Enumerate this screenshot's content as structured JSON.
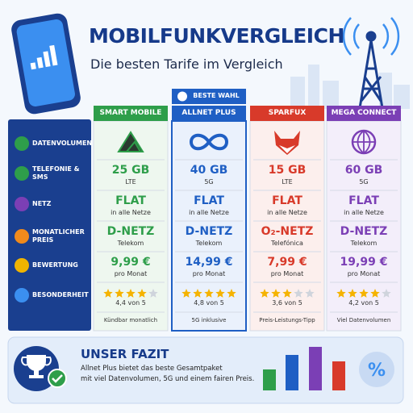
{
  "header": {
    "title": "MOBILFUNKVERGLEICH",
    "subtitle": "Die besten Tarife im Vergleich"
  },
  "table": {
    "row_labels": [
      "DATENVOLUMEN",
      "TELEFONIE & SMS",
      "NETZ",
      "MONATLICHER PREIS",
      "BEWERTUNG",
      "BESONDERHEIT"
    ],
    "badge": "BESTE WAHL",
    "columns": [
      {
        "name": "SMART MOBILE",
        "data": "25 GB",
        "data_sub": "LTE",
        "calls": "FLAT",
        "calls_sub": "in alle Netze",
        "network": "D-NETZ",
        "network_sub": "Telekom",
        "price": "9,99 €",
        "price_sub": "pro Monat",
        "rating": "4,4 von 5",
        "note": "Kündbar monatlich"
      },
      {
        "name": "ALLNET PLUS",
        "data": "40 GB",
        "data_sub": "5G",
        "calls": "FLAT",
        "calls_sub": "in alle Netze",
        "network": "D-NETZ",
        "network_sub": "Telekom",
        "price": "14,99 €",
        "price_sub": "pro Monat",
        "rating": "4,8 von 5",
        "note": "5G inklusive"
      },
      {
        "name": "SPARFUX",
        "data": "15 GB",
        "data_sub": "LTE",
        "calls": "FLAT",
        "calls_sub": "in alle Netze",
        "network": "O₂-NETZ",
        "network_sub": "Telefónica",
        "price": "7,99 €",
        "price_sub": "pro Monat",
        "rating": "3,6 von 5",
        "note": "Preis-Leistungs-Tipp"
      },
      {
        "name": "MEGA CONNECT",
        "data": "60 GB",
        "data_sub": "5G",
        "calls": "FLAT",
        "calls_sub": "in alle Netze",
        "network": "D-NETZ",
        "network_sub": "Telekom",
        "price": "19,99 €",
        "price_sub": "pro Monat",
        "rating": "4,2 von 5",
        "note": "Viel Datenvolumen"
      }
    ]
  },
  "summary": {
    "title": "UNSER FAZIT",
    "text": [
      "Allnet Plus bietet das beste Gesamtpaket",
      "mit viel Datenvolumen, 5G und einem fairen Preis."
    ]
  }
}
